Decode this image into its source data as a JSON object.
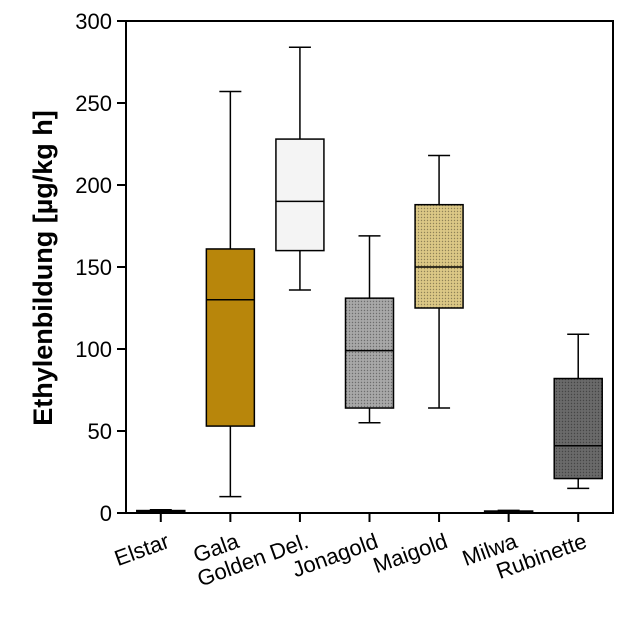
{
  "chart_data": {
    "type": "boxplot",
    "title": "",
    "xlabel": "",
    "ylabel": "Ethylenbildung [µg/kg h]",
    "ylim": [
      0,
      300
    ],
    "yticks": [
      0,
      50,
      100,
      150,
      200,
      250,
      300
    ],
    "grid": false,
    "categories": [
      "Elstar",
      "Gala",
      "Golden Del.",
      "Jonagold",
      "Maigold",
      "Milwa",
      "Rubinette"
    ],
    "boxes": [
      {
        "category": "Elstar",
        "min": 0,
        "q1": 0.5,
        "median": 1,
        "q3": 1.5,
        "max": 2,
        "color": "#222222",
        "pattern": "solid"
      },
      {
        "category": "Gala",
        "min": 10,
        "q1": 53,
        "median": 130,
        "q3": 161,
        "max": 257,
        "color": "#b8860b",
        "pattern": "solid"
      },
      {
        "category": "Golden Del.",
        "min": 136,
        "q1": 160,
        "median": 190,
        "q3": 228,
        "max": 284,
        "color": "#f4f4f4",
        "pattern": "solid"
      },
      {
        "category": "Jonagold",
        "min": 55,
        "q1": 64,
        "median": 99,
        "q3": 131,
        "max": 169,
        "color": "#a8a8a8",
        "pattern": "dots"
      },
      {
        "category": "Maigold",
        "min": 64,
        "q1": 125,
        "median": 150,
        "q3": 188,
        "max": 218,
        "color": "#dcc886",
        "pattern": "dots"
      },
      {
        "category": "Milwa",
        "min": 0,
        "q1": 0.4,
        "median": 0.8,
        "q3": 1.2,
        "max": 1.6,
        "color": "#222222",
        "pattern": "solid"
      },
      {
        "category": "Rubinette",
        "min": 15,
        "q1": 21,
        "median": 41,
        "q3": 82,
        "max": 109,
        "color": "#6a6a6a",
        "pattern": "dots"
      }
    ]
  }
}
